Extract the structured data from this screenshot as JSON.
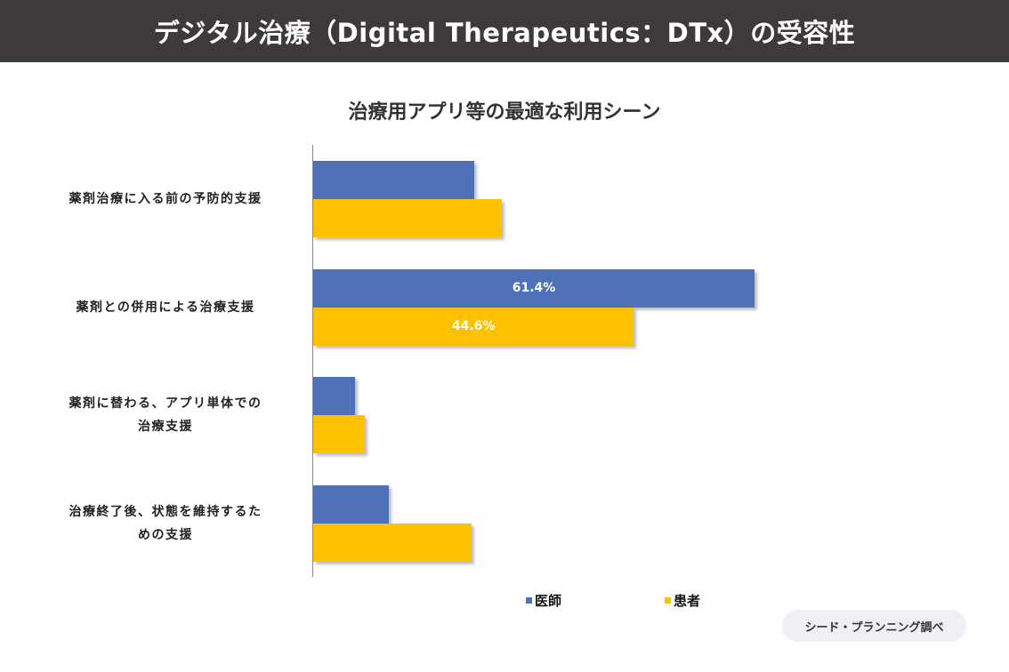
{
  "header": {
    "title": "デジタル治療（Digital Therapeutics：DTx）の受容性"
  },
  "source_badge": "シード・プランニング調べ",
  "chart_data": {
    "type": "bar",
    "orientation": "horizontal",
    "title": "治療用アプリ等の最適な利用シーン",
    "categories": [
      "薬剤治療に入る前の予防的支援",
      "薬剤との併用による治療支援",
      "薬剤に替わる、アプリ単体での\n治療支援",
      "治療終了後、状態を維持するた\nめの支援"
    ],
    "series": [
      {
        "name": "医師",
        "color": "#4e71b8",
        "values": [
          22.4,
          61.4,
          5.8,
          10.5
        ],
        "labels": [
          null,
          "61.4%",
          null,
          null
        ]
      },
      {
        "name": "患者",
        "color": "#ffc000",
        "values": [
          26.2,
          44.6,
          7.2,
          22.0
        ],
        "labels": [
          null,
          "44.6%",
          null,
          null
        ]
      }
    ],
    "xlabel": "",
    "ylabel": "",
    "xlim": [
      0,
      100
    ],
    "grid": false,
    "legend_position": "bottom"
  }
}
